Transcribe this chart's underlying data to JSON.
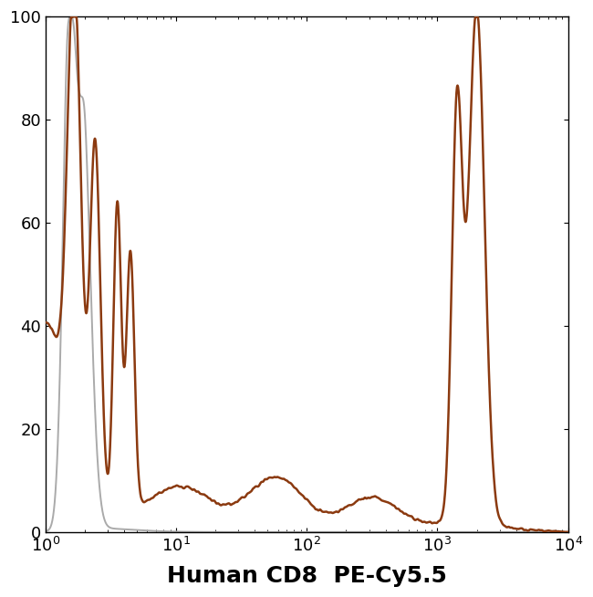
{
  "title": "",
  "xlabel": "Human CD8  PE-Cy5.5",
  "ylabel": "",
  "xlim_log": [
    1,
    10000
  ],
  "ylim": [
    0,
    100
  ],
  "yticks": [
    0,
    20,
    40,
    60,
    80,
    100
  ],
  "background_color": "#ffffff",
  "brown_color": "#8B3A10",
  "gray_color": "#aaaaaa",
  "xlabel_fontsize": 18,
  "tick_fontsize": 13,
  "linewidth_brown": 1.8,
  "linewidth_gray": 1.4,
  "figsize": [
    6.5,
    6.54
  ],
  "dpi": 100
}
